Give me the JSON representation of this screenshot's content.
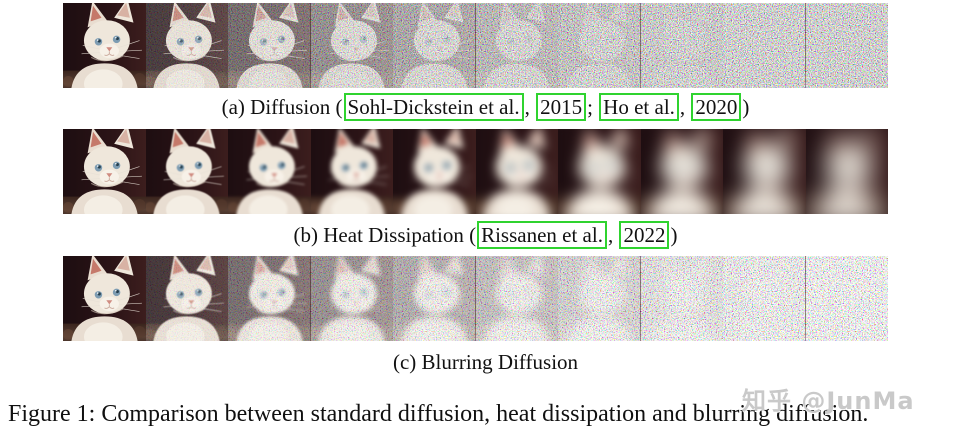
{
  "figure": {
    "caption": "Figure 1: Comparison between standard diffusion, heat dissipation and blurring diffusion.",
    "watermark": "知乎 @JunMa",
    "citation_box_color": "#2fd32f",
    "rows": [
      {
        "id": "diffusion",
        "process": "standard diffusion (increasing noise)",
        "caption_segments": [
          {
            "text": "(a) Diffusion (",
            "boxed": false
          },
          {
            "text": "Sohl-Dickstein et al.",
            "boxed": true
          },
          {
            "text": ", ",
            "boxed": false
          },
          {
            "text": "2015",
            "boxed": true
          },
          {
            "text": "; ",
            "boxed": false
          },
          {
            "text": "Ho et al.",
            "boxed": true
          },
          {
            "text": ", ",
            "boxed": false
          },
          {
            "text": "2020",
            "boxed": true
          },
          {
            "text": ")",
            "boxed": false
          }
        ],
        "frames": [
          {
            "blur": 0,
            "noise": 0
          },
          {
            "blur": 0,
            "noise": 0.25
          },
          {
            "blur": 0,
            "noise": 0.5
          },
          {
            "blur": 0,
            "noise": 0.68
          },
          {
            "blur": 0,
            "noise": 0.8
          },
          {
            "blur": 0,
            "noise": 0.88
          },
          {
            "blur": 0,
            "noise": 0.93
          },
          {
            "blur": 0,
            "noise": 0.97
          },
          {
            "blur": 0,
            "noise": 1
          },
          {
            "blur": 0,
            "noise": 1
          }
        ]
      },
      {
        "id": "heat-dissipation",
        "process": "heat dissipation (increasing blur)",
        "caption_segments": [
          {
            "text": "(b) Heat Dissipation (",
            "boxed": false
          },
          {
            "text": "Rissanen et al.",
            "boxed": true
          },
          {
            "text": ", ",
            "boxed": false
          },
          {
            "text": "2022",
            "boxed": true
          },
          {
            "text": ")",
            "boxed": false
          }
        ],
        "frames": [
          {
            "blur": 0,
            "noise": 0
          },
          {
            "blur": 0.5,
            "noise": 0
          },
          {
            "blur": 1.2,
            "noise": 0
          },
          {
            "blur": 2.2,
            "noise": 0
          },
          {
            "blur": 3.5,
            "noise": 0
          },
          {
            "blur": 5,
            "noise": 0
          },
          {
            "blur": 7,
            "noise": 0
          },
          {
            "blur": 9,
            "noise": 0
          },
          {
            "blur": 11,
            "noise": 0
          },
          {
            "blur": 13,
            "noise": 0
          }
        ]
      },
      {
        "id": "blurring-diffusion",
        "process": "blurring diffusion (noise + blur)",
        "light_noise": true,
        "caption_segments": [
          {
            "text": "(c) Blurring Diffusion",
            "boxed": false
          }
        ],
        "frames": [
          {
            "blur": 0,
            "noise": 0
          },
          {
            "blur": 0.6,
            "noise": 0.2
          },
          {
            "blur": 1.3,
            "noise": 0.45
          },
          {
            "blur": 2.1,
            "noise": 0.6
          },
          {
            "blur": 2.9,
            "noise": 0.72
          },
          {
            "blur": 3.7,
            "noise": 0.8
          },
          {
            "blur": 4.5,
            "noise": 0.88
          },
          {
            "blur": 5.3,
            "noise": 0.94
          },
          {
            "blur": 6.1,
            "noise": 0.98
          },
          {
            "blur": 7,
            "noise": 1
          }
        ]
      }
    ]
  }
}
